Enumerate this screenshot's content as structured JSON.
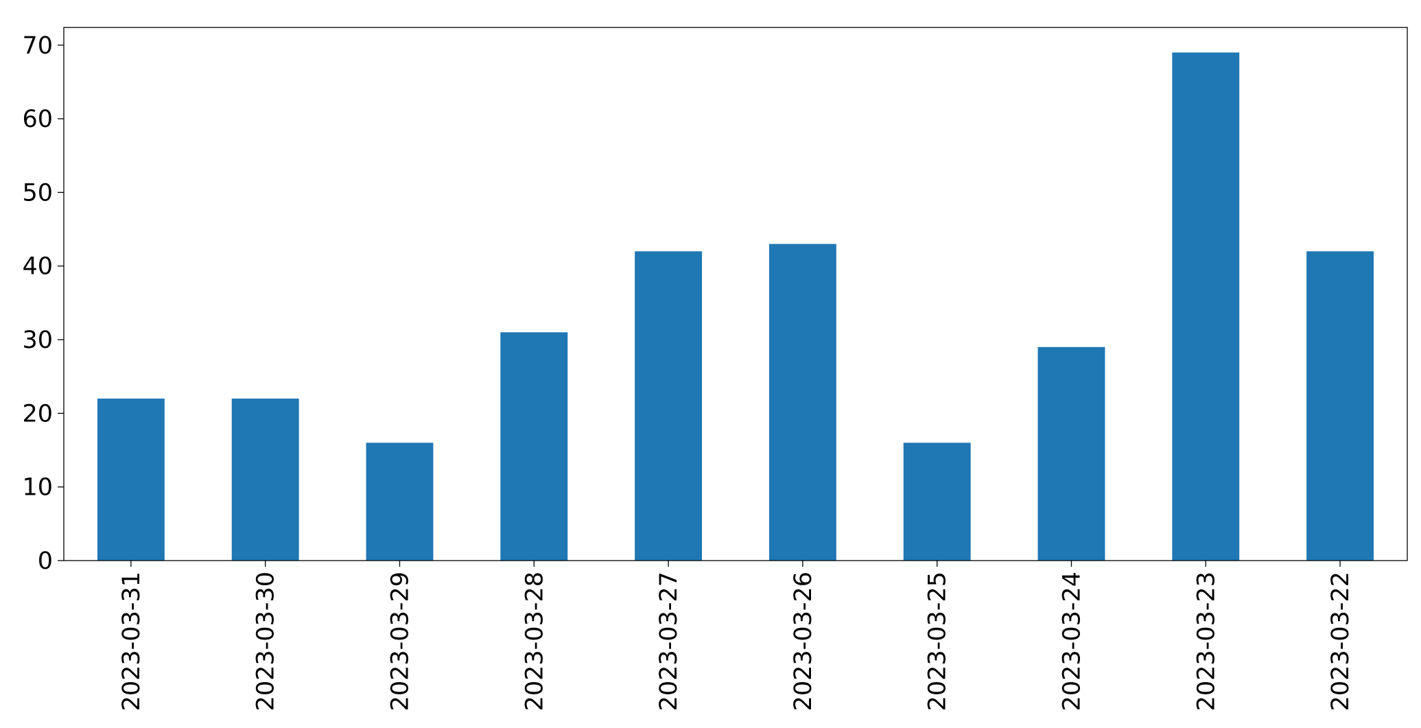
{
  "chart_data": {
    "type": "bar",
    "categories": [
      "2023-03-31",
      "2023-03-30",
      "2023-03-29",
      "2023-03-28",
      "2023-03-27",
      "2023-03-26",
      "2023-03-25",
      "2023-03-24",
      "2023-03-23",
      "2023-03-22"
    ],
    "values": [
      22,
      22,
      16,
      31,
      42,
      43,
      16,
      29,
      69,
      42
    ],
    "color": "#1f77b4",
    "ylim": [
      0,
      72.4
    ],
    "yticks": [
      0,
      10,
      20,
      30,
      40,
      50,
      60,
      70
    ],
    "grid": false
  }
}
